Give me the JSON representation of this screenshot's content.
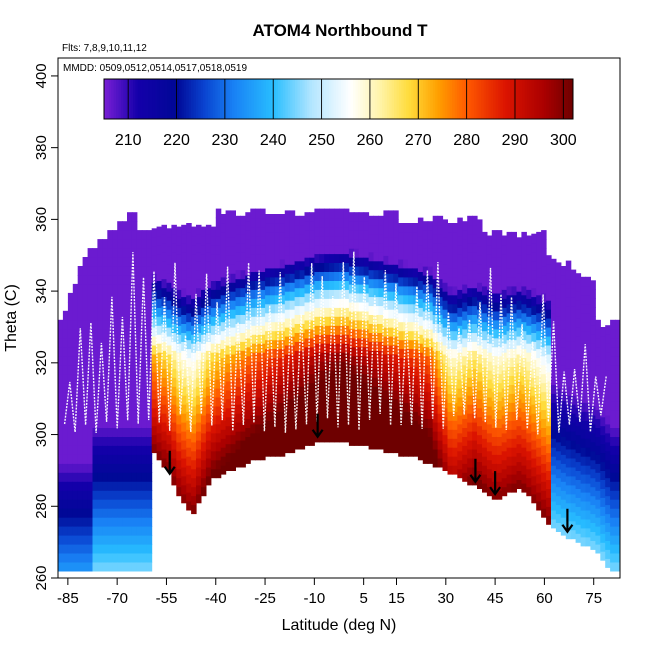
{
  "chart_data": {
    "type": "heatmap",
    "title": "ATOM4 Northbound T",
    "flights_note": "Flts: 7,8,9,10,11,12",
    "dates_note": "MMDD: 0509,0512,0514,0517,0518,0519",
    "xlabel": "Latitude (deg N)",
    "ylabel": "Theta (C)",
    "xlim": [
      -88,
      83
    ],
    "ylim": [
      260,
      405
    ],
    "x_ticks": [
      -85,
      -70,
      -55,
      -40,
      -25,
      -10,
      5,
      15,
      30,
      45,
      60,
      75
    ],
    "y_ticks": [
      260,
      280,
      300,
      320,
      340,
      360,
      380,
      400
    ],
    "colorbar": {
      "min": 205,
      "max": 302,
      "ticks": [
        210,
        220,
        230,
        240,
        250,
        260,
        270,
        280,
        290,
        300
      ]
    },
    "colors": {
      "cold": "#7a1fd6",
      "mid": "#ffffff",
      "hot": "#7a0000",
      "trace": "#ffffff",
      "arrow": "#000000"
    },
    "arrows_lat": [
      -54,
      -9,
      39,
      45,
      67
    ],
    "surface_boundary": [
      [
        -60,
        296
      ],
      [
        -55,
        290
      ],
      [
        -52,
        283
      ],
      [
        -48,
        278
      ],
      [
        -42,
        288
      ],
      [
        -30,
        293
      ],
      [
        -20,
        295
      ],
      [
        -10,
        298
      ],
      [
        0,
        298
      ],
      [
        10,
        296
      ],
      [
        20,
        294
      ],
      [
        30,
        290
      ],
      [
        38,
        286
      ],
      [
        45,
        282
      ],
      [
        52,
        286
      ],
      [
        58,
        279
      ],
      [
        62,
        274
      ],
      [
        66,
        272
      ],
      [
        70,
        270
      ],
      [
        75,
        268
      ],
      [
        80,
        262
      ]
    ]
  }
}
